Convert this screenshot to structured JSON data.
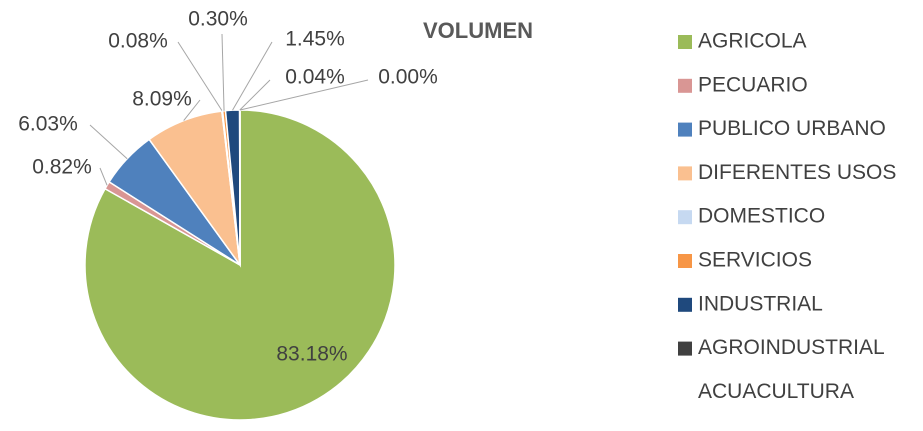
{
  "chart_data": {
    "type": "pie",
    "title": "VOLUMEN",
    "categories": [
      "AGRICOLA",
      "PECUARIO",
      "PUBLICO URBANO",
      "DIFERENTES USOS",
      "DOMESTICO",
      "SERVICIOS",
      "INDUSTRIAL",
      "AGROINDUSTRIAL",
      "ACUACULTURA"
    ],
    "values": [
      83.18,
      0.82,
      6.03,
      8.09,
      0.08,
      0.3,
      1.45,
      0.04,
      0.0
    ],
    "value_labels": [
      "83.18%",
      "0.82%",
      "6.03%",
      "8.09%",
      "0.08%",
      "0.30%",
      "1.45%",
      "0.04%",
      "0.00%"
    ],
    "colors": [
      "#9bbb59",
      "#d99694",
      "#4f81bd",
      "#fac090",
      "#c6d9f1",
      "#f79646",
      "#1f497d",
      "#404040",
      null
    ],
    "legend": "right"
  }
}
